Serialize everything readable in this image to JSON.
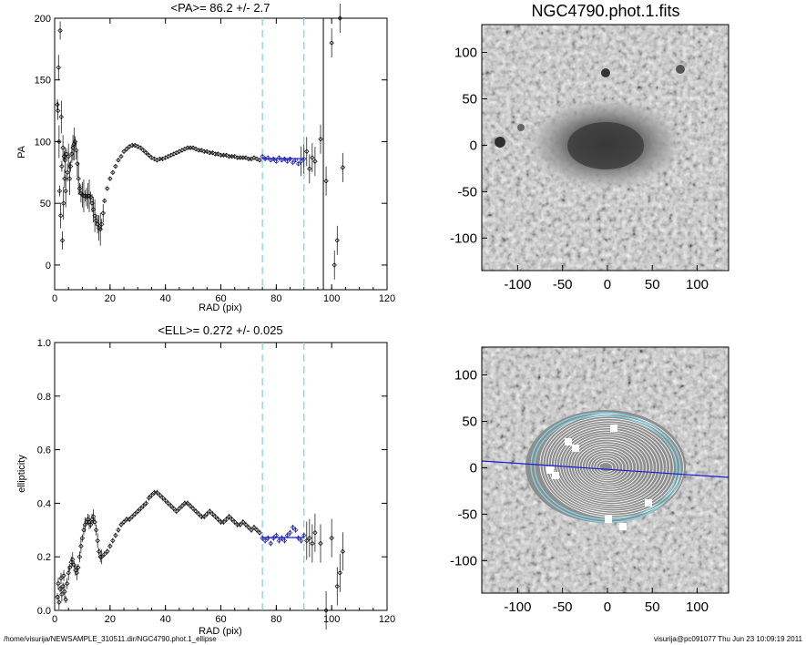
{
  "footer": {
    "left": "/home/visurija/NEWSAMPLE_310511.dir/NGC4790.phot.1_ellipse",
    "right": "visurija@pc091077  Thu Jun 23 10:09:19 2011"
  },
  "colors": {
    "profile": "#000000",
    "fit": "#1a1ad8",
    "window": "#7fd6e6",
    "contour": "#ffffff",
    "ellipse_outer": "#7fd6e6"
  },
  "chart_data": [
    {
      "type": "scatter",
      "title": "<PA>=  86.2 +/-   2.7",
      "xlabel": "RAD (pix)",
      "ylabel": "PA",
      "xlim": [
        0,
        120
      ],
      "ylim": [
        -20,
        200
      ],
      "xticks": [
        "0",
        "20",
        "40",
        "60",
        "80",
        "100",
        "120"
      ],
      "yticks": [
        "0",
        "50",
        "100",
        "150",
        "200"
      ],
      "grid": false,
      "window": [
        75,
        90
      ],
      "vline": 97,
      "fit": {
        "x": [
          75,
          90
        ],
        "y": 86.2
      },
      "points": [
        [
          1.0,
          130
        ],
        [
          1.2,
          125
        ],
        [
          1.4,
          160
        ],
        [
          1.6,
          100
        ],
        [
          1.8,
          60
        ],
        [
          2.0,
          190
        ],
        [
          2.2,
          40
        ],
        [
          2.4,
          120
        ],
        [
          2.6,
          80
        ],
        [
          2.8,
          20
        ],
        [
          3.0,
          95
        ],
        [
          3.2,
          50
        ],
        [
          3.4,
          88
        ],
        [
          3.6,
          70
        ],
        [
          3.8,
          85
        ],
        [
          4.0,
          60
        ],
        [
          4.3,
          90
        ],
        [
          4.6,
          75
        ],
        [
          5.0,
          88
        ],
        [
          5.4,
          70
        ],
        [
          5.8,
          80
        ],
        [
          6.2,
          90
        ],
        [
          6.6,
          95
        ],
        [
          7.0,
          98
        ],
        [
          7.4,
          100
        ],
        [
          7.8,
          93
        ],
        [
          8.2,
          82
        ],
        [
          8.6,
          70
        ],
        [
          9.0,
          62
        ],
        [
          9.5,
          58
        ],
        [
          10,
          57
        ],
        [
          10.5,
          56
        ],
        [
          11,
          56
        ],
        [
          11.5,
          55
        ],
        [
          12,
          56
        ],
        [
          12.5,
          56
        ],
        [
          13,
          55
        ],
        [
          13.5,
          50
        ],
        [
          14,
          45
        ],
        [
          14.5,
          40
        ],
        [
          15,
          36
        ],
        [
          15.5,
          33
        ],
        [
          16,
          30
        ],
        [
          16.5,
          29
        ],
        [
          17,
          33
        ],
        [
          17.5,
          42
        ],
        [
          18,
          52
        ],
        [
          19,
          62
        ],
        [
          20,
          70
        ],
        [
          21,
          75
        ],
        [
          22,
          80
        ],
        [
          23,
          85
        ],
        [
          24,
          88
        ],
        [
          25,
          92
        ],
        [
          26,
          94
        ],
        [
          27,
          96
        ],
        [
          28,
          97
        ],
        [
          29,
          97
        ],
        [
          30,
          96
        ],
        [
          31,
          95
        ],
        [
          32,
          93
        ],
        [
          33,
          91
        ],
        [
          34,
          89
        ],
        [
          35,
          87
        ],
        [
          36,
          86
        ],
        [
          37,
          85
        ],
        [
          38,
          86
        ],
        [
          39,
          86
        ],
        [
          40,
          87
        ],
        [
          41,
          88
        ],
        [
          42,
          89
        ],
        [
          43,
          90
        ],
        [
          44,
          91
        ],
        [
          45,
          92
        ],
        [
          46,
          93
        ],
        [
          47,
          94
        ],
        [
          48,
          95
        ],
        [
          49,
          95
        ],
        [
          50,
          95
        ],
        [
          51,
          94
        ],
        [
          52,
          93
        ],
        [
          53,
          93
        ],
        [
          54,
          92
        ],
        [
          55,
          92
        ],
        [
          56,
          91
        ],
        [
          57,
          91
        ],
        [
          58,
          90
        ],
        [
          59,
          90
        ],
        [
          60,
          89
        ],
        [
          61,
          89
        ],
        [
          62,
          89
        ],
        [
          63,
          88
        ],
        [
          64,
          88
        ],
        [
          65,
          88
        ],
        [
          66,
          87
        ],
        [
          67,
          87
        ],
        [
          68,
          87
        ],
        [
          69,
          87
        ],
        [
          70,
          86
        ],
        [
          71,
          86
        ],
        [
          72,
          87
        ],
        [
          73,
          86
        ],
        [
          74,
          85
        ],
        [
          75,
          88
        ],
        [
          76,
          86
        ],
        [
          77,
          87
        ],
        [
          78,
          85
        ],
        [
          79,
          86
        ],
        [
          80,
          84
        ],
        [
          81,
          87
        ],
        [
          82,
          85
        ],
        [
          83,
          86
        ],
        [
          84,
          84
        ],
        [
          85,
          86
        ],
        [
          86,
          83
        ],
        [
          87,
          85
        ],
        [
          88,
          82
        ],
        [
          89,
          84
        ],
        [
          90,
          86
        ],
        [
          91,
          92
        ],
        [
          92,
          78
        ],
        [
          93,
          87
        ],
        [
          94,
          84
        ],
        [
          96,
          102
        ],
        [
          98,
          68
        ],
        [
          100,
          180
        ],
        [
          101,
          0
        ],
        [
          102,
          20
        ],
        [
          103,
          200
        ],
        [
          104,
          79
        ]
      ]
    },
    {
      "type": "scatter",
      "title": "<ELL>= 0.272 +/-  0.025",
      "xlabel": "RAD (pix)",
      "ylabel": "ellipticity",
      "xlim": [
        0,
        120
      ],
      "ylim": [
        0,
        1
      ],
      "xticks": [
        "0",
        "20",
        "40",
        "60",
        "80",
        "100",
        "120"
      ],
      "yticks": [
        "0.0",
        "0.2",
        "0.4",
        "0.6",
        "0.8",
        "1.0"
      ],
      "grid": false,
      "window": [
        75,
        90
      ],
      "fit": {
        "x": [
          75,
          90
        ],
        "y": 0.272
      },
      "points": [
        [
          1.0,
          0.05
        ],
        [
          1.3,
          0.1
        ],
        [
          1.6,
          0.03
        ],
        [
          2.0,
          0.08
        ],
        [
          2.3,
          0.12
        ],
        [
          2.6,
          0.06
        ],
        [
          3.0,
          0.09
        ],
        [
          3.3,
          0.13
        ],
        [
          3.6,
          0.07
        ],
        [
          4.0,
          0.04
        ],
        [
          4.5,
          0.1
        ],
        [
          5.0,
          0.14
        ],
        [
          5.5,
          0.16
        ],
        [
          6.0,
          0.18
        ],
        [
          6.5,
          0.19
        ],
        [
          7.0,
          0.17
        ],
        [
          7.5,
          0.15
        ],
        [
          8.0,
          0.14
        ],
        [
          8.5,
          0.16
        ],
        [
          9.0,
          0.2
        ],
        [
          9.5,
          0.24
        ],
        [
          10,
          0.27
        ],
        [
          10.5,
          0.3
        ],
        [
          11,
          0.32
        ],
        [
          11.5,
          0.33
        ],
        [
          12,
          0.34
        ],
        [
          12.5,
          0.33
        ],
        [
          13,
          0.32
        ],
        [
          13.5,
          0.34
        ],
        [
          14,
          0.35
        ],
        [
          14.5,
          0.33
        ],
        [
          15,
          0.3
        ],
        [
          15.5,
          0.26
        ],
        [
          16,
          0.22
        ],
        [
          16.5,
          0.2
        ],
        [
          17,
          0.2
        ],
        [
          18,
          0.21
        ],
        [
          19,
          0.22
        ],
        [
          20,
          0.24
        ],
        [
          21,
          0.26
        ],
        [
          22,
          0.28
        ],
        [
          23,
          0.3
        ],
        [
          24,
          0.32
        ],
        [
          25,
          0.33
        ],
        [
          26,
          0.34
        ],
        [
          27,
          0.34
        ],
        [
          28,
          0.35
        ],
        [
          29,
          0.36
        ],
        [
          30,
          0.37
        ],
        [
          31,
          0.38
        ],
        [
          32,
          0.39
        ],
        [
          33,
          0.4
        ],
        [
          34,
          0.42
        ],
        [
          35,
          0.43
        ],
        [
          36,
          0.44
        ],
        [
          37,
          0.44
        ],
        [
          38,
          0.43
        ],
        [
          39,
          0.42
        ],
        [
          40,
          0.41
        ],
        [
          41,
          0.4
        ],
        [
          42,
          0.39
        ],
        [
          43,
          0.38
        ],
        [
          44,
          0.37
        ],
        [
          45,
          0.38
        ],
        [
          46,
          0.39
        ],
        [
          47,
          0.4
        ],
        [
          48,
          0.4
        ],
        [
          49,
          0.39
        ],
        [
          50,
          0.38
        ],
        [
          51,
          0.37
        ],
        [
          52,
          0.36
        ],
        [
          53,
          0.35
        ],
        [
          54,
          0.35
        ],
        [
          55,
          0.36
        ],
        [
          56,
          0.37
        ],
        [
          57,
          0.36
        ],
        [
          58,
          0.35
        ],
        [
          59,
          0.34
        ],
        [
          60,
          0.33
        ],
        [
          61,
          0.33
        ],
        [
          62,
          0.34
        ],
        [
          63,
          0.35
        ],
        [
          64,
          0.34
        ],
        [
          65,
          0.33
        ],
        [
          66,
          0.32
        ],
        [
          67,
          0.32
        ],
        [
          68,
          0.33
        ],
        [
          69,
          0.32
        ],
        [
          70,
          0.31
        ],
        [
          71,
          0.3
        ],
        [
          72,
          0.31
        ],
        [
          73,
          0.3
        ],
        [
          74,
          0.29
        ],
        [
          75,
          0.27
        ],
        [
          76,
          0.26
        ],
        [
          77,
          0.27
        ],
        [
          78,
          0.25
        ],
        [
          79,
          0.27
        ],
        [
          80,
          0.28
        ],
        [
          81,
          0.26
        ],
        [
          82,
          0.27
        ],
        [
          83,
          0.26
        ],
        [
          84,
          0.28
        ],
        [
          85,
          0.29
        ],
        [
          86,
          0.31
        ],
        [
          87,
          0.3
        ],
        [
          88,
          0.27
        ],
        [
          89,
          0.26
        ],
        [
          90,
          0.28
        ],
        [
          91,
          0.26
        ],
        [
          92,
          0.27
        ],
        [
          93,
          0.25
        ],
        [
          94,
          0.29
        ],
        [
          96,
          0.25
        ],
        [
          98,
          0.0
        ],
        [
          100,
          0.27
        ],
        [
          102,
          0.09
        ],
        [
          103,
          0.14
        ],
        [
          104,
          0.22
        ]
      ]
    },
    {
      "type": "heatmap",
      "title": "NGC4790.phot.1.fits",
      "xlabel": "",
      "ylabel": "",
      "xlim": [
        -140,
        135
      ],
      "ylim": [
        -135,
        130
      ],
      "xticks": [
        "-100",
        "-50",
        "0",
        "50",
        "100"
      ],
      "yticks": [
        "-100",
        "-50",
        "0",
        "50",
        "100"
      ],
      "grid": false
    },
    {
      "type": "heatmap",
      "title": "",
      "xlabel": "",
      "ylabel": "",
      "xlim": [
        -140,
        135
      ],
      "ylim": [
        -135,
        130
      ],
      "xticks": [
        "-100",
        "-50",
        "0",
        "50",
        "100"
      ],
      "yticks": [
        "-100",
        "-50",
        "0",
        "50",
        "100"
      ],
      "grid": false,
      "pa_line_angle": 86.2
    }
  ]
}
